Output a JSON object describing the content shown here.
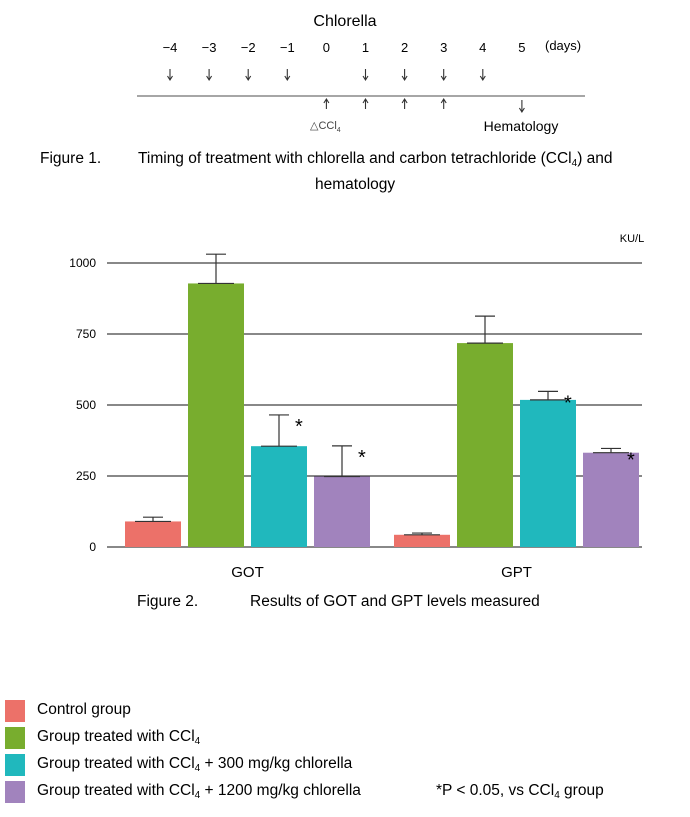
{
  "timeline": {
    "title": "Chlorella",
    "unit_label": "(days)",
    "days": [
      "−4",
      "−3",
      "−2",
      "−1",
      "0",
      "1",
      "2",
      "3",
      "4",
      "5"
    ],
    "chlorella_days": [
      "−4",
      "−3",
      "−2",
      "−1",
      "1",
      "2",
      "3",
      "4"
    ],
    "arrow_up_days": [
      "0",
      "1",
      "2",
      "3"
    ],
    "hematology_day": "5",
    "ccl4_marker": "△CCl",
    "ccl4_sub": "4",
    "hematology_label": "Hematology"
  },
  "figure1": {
    "number": "Figure 1.",
    "caption_pre": "Timing of treatment with chlorella and carbon tetrachloride (CCl",
    "caption_sub": "4",
    "caption_post": ") and",
    "caption_line2": "hematology"
  },
  "figure2": {
    "number": "Figure 2.",
    "caption": "Results of GOT and GPT levels measured"
  },
  "chart_data": {
    "type": "bar",
    "unit": "KU/L",
    "categories": [
      "GOT",
      "GPT"
    ],
    "ylim": [
      0,
      1000
    ],
    "yticks": [
      0,
      250,
      500,
      750,
      1000
    ],
    "grid": true,
    "series": [
      {
        "name": "Control group",
        "color": "#ec7169",
        "values": [
          90,
          43
        ],
        "errors": [
          15,
          6
        ],
        "significant": [
          false,
          false
        ]
      },
      {
        "name": "Group treated with CCl₄",
        "color": "#78ad2e",
        "values": [
          928,
          718
        ],
        "errors": [
          103,
          95
        ],
        "significant": [
          false,
          false
        ]
      },
      {
        "name": "Group treated with CCl₄ + 300 mg/kg chlorella",
        "color": "#20b8bd",
        "values": [
          355,
          518
        ],
        "errors": [
          110,
          30
        ],
        "significant": [
          true,
          true
        ]
      },
      {
        "name": "Group treated with CCl₄ + 1200 mg/kg chlorella",
        "color": "#a183bd",
        "values": [
          248,
          332
        ],
        "errors": [
          108,
          15
        ],
        "significant": [
          true,
          true
        ]
      }
    ],
    "significance_mark": "*"
  },
  "legend": [
    {
      "pre": "Control group",
      "sub": "",
      "post": "",
      "color": "#ec7169"
    },
    {
      "pre": "Group treated with CCl",
      "sub": "4",
      "post": "",
      "color": "#78ad2e"
    },
    {
      "pre": "Group treated with CCl",
      "sub": "4",
      "post": " + 300 mg/kg chlorella",
      "color": "#20b8bd"
    },
    {
      "pre": "Group treated with CCl",
      "sub": "4",
      "post": " + 1200 mg/kg chlorella",
      "color": "#a183bd"
    }
  ],
  "significance_note": {
    "pre": "*P < 0.05, vs CCl",
    "sub": "4",
    "post": " group"
  }
}
